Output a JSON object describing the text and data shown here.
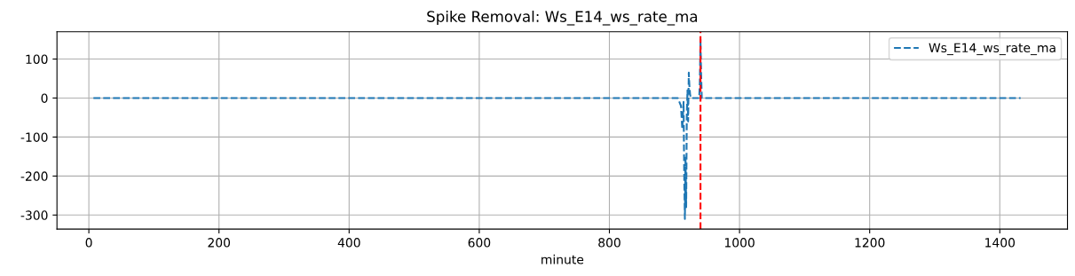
{
  "chart_data": {
    "type": "line",
    "title": "Spike Removal: Ws_E14_ws_rate_ma",
    "xlabel": "minute",
    "x": [
      7,
      100,
      200,
      300,
      400,
      500,
      600,
      700,
      800,
      880,
      905,
      910,
      912,
      914,
      915,
      916,
      917,
      918,
      919,
      920,
      921,
      922,
      923,
      924,
      925,
      930,
      935,
      938,
      939,
      940,
      941,
      942,
      945,
      1000,
      1100,
      1200,
      1300,
      1432
    ],
    "series": [
      {
        "name": "Ws_E14_ws_rate_ma",
        "color": "#1f77b4",
        "values": [
          0,
          0,
          0,
          0,
          0,
          0,
          0,
          0,
          0,
          0,
          0,
          -20,
          -80,
          -10,
          -200,
          -310,
          -150,
          -280,
          -40,
          20,
          -60,
          65,
          30,
          10,
          0,
          0,
          0,
          0,
          40,
          150,
          60,
          0,
          0,
          0,
          0,
          0,
          0,
          0
        ]
      }
    ],
    "xlim": [
      -49,
      1504
    ],
    "ylim": [
      -336,
      170
    ],
    "xticks": [
      0,
      200,
      400,
      600,
      800,
      1000,
      1200,
      1400
    ],
    "yticks": [
      -300,
      -200,
      -100,
      0,
      100
    ],
    "ref_lines": [
      {
        "axis": "x",
        "value": 940,
        "color": "#ff0000",
        "line_style": "dashed"
      }
    ],
    "grid": true,
    "legend": "top right",
    "line_style": "dashed",
    "marker": "none"
  }
}
